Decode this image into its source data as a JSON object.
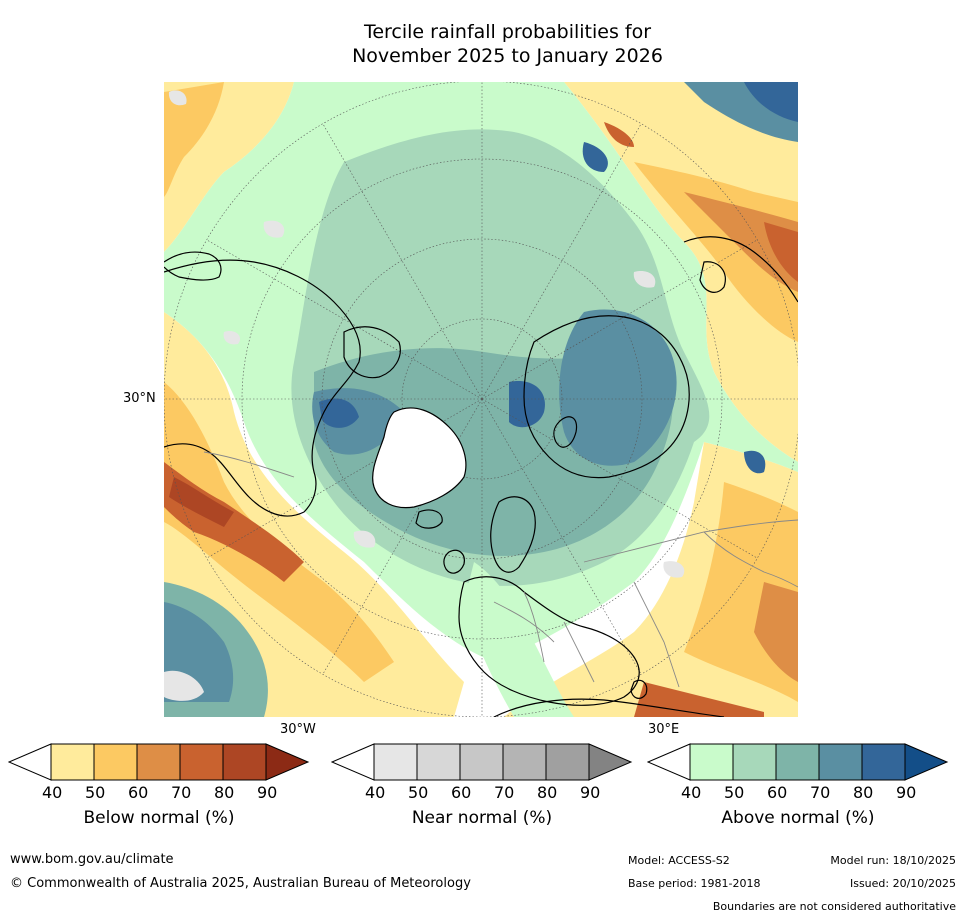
{
  "title": {
    "line1": "Tercile rainfall probabilities for",
    "line2": "November 2025 to January 2026"
  },
  "map": {
    "projection": "north-polar-stereographic",
    "lat_labels": [
      "30°N"
    ],
    "lon_labels": [
      "30°W",
      "30°E"
    ],
    "colors": {
      "below": [
        "#ffeb9c",
        "#fcc962",
        "#de8e46",
        "#c9622f",
        "#ad4624",
        "#8c2a15"
      ],
      "near": [
        "#e6e6e6",
        "#d7d7d7",
        "#c7c7c7",
        "#b4b4b4",
        "#a0a0a0",
        "#838383"
      ],
      "above": [
        "#c9fbcb",
        "#a7d8ba",
        "#7eb4a8",
        "#5a8fa2",
        "#336699",
        "#134e88"
      ]
    }
  },
  "colorbars": [
    {
      "id": "below",
      "title": "Below normal (%)",
      "ticks": [
        "40",
        "50",
        "60",
        "70",
        "80",
        "90"
      ]
    },
    {
      "id": "near",
      "title": "Near normal (%)",
      "ticks": [
        "40",
        "50",
        "60",
        "70",
        "80",
        "90"
      ]
    },
    {
      "id": "above",
      "title": "Above normal (%)",
      "ticks": [
        "40",
        "50",
        "60",
        "70",
        "80",
        "90"
      ]
    }
  ],
  "footer": {
    "website": "www.bom.gov.au/climate",
    "copyright": "© Commonwealth of Australia 2025, Australian Bureau of Meteorology",
    "model": "Model: ACCESS-S2",
    "base_period": "Base period: 1981-2018",
    "model_run": "Model run: 18/10/2025",
    "issued": "Issued: 20/10/2025",
    "disclaimer": "Boundaries are not considered authoritative"
  }
}
